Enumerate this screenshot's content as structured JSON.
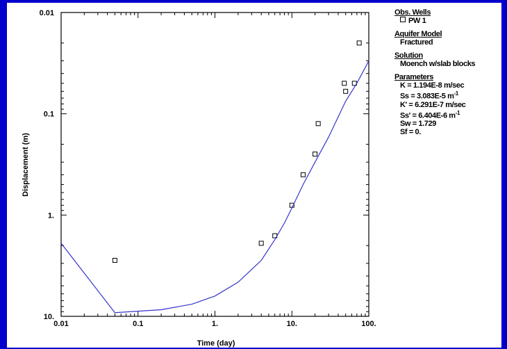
{
  "chart_data": {
    "type": "scatter",
    "xscale": "log",
    "yscale": "log",
    "y_inverted": true,
    "xlabel": "Time (day)",
    "ylabel": "Displacement (m)",
    "xlim": [
      0.01,
      100
    ],
    "ylim": [
      0.01,
      10
    ],
    "x_ticks": [
      "0.01",
      "0.1",
      "1.",
      "10.",
      "100."
    ],
    "y_ticks": [
      "0.01",
      "0.1",
      "1.",
      "10."
    ],
    "grid": false,
    "legend_position": "right",
    "series": [
      {
        "name": "PW 1",
        "kind": "points",
        "marker": "open-square",
        "color": "#000000",
        "x": [
          0.05,
          4.0,
          6.0,
          10.0,
          14.0,
          20.0,
          22.0,
          48.0,
          50.0,
          65.0,
          75.0
        ],
        "y": [
          2.8,
          1.9,
          1.6,
          0.8,
          0.4,
          0.25,
          0.125,
          0.05,
          0.06,
          0.05,
          0.02
        ]
      },
      {
        "kind": "curve",
        "color": "#3333cc",
        "x": [
          0.01,
          0.05,
          0.2,
          0.5,
          1.0,
          2.0,
          4.0,
          6.0,
          8.0,
          10.0,
          14.0,
          20.0,
          30.0,
          50.0,
          70.0,
          100.0
        ],
        "y": [
          1.9,
          9.2,
          8.6,
          7.6,
          6.3,
          4.6,
          2.8,
          1.75,
          1.2,
          0.85,
          0.5,
          0.3,
          0.17,
          0.075,
          0.05,
          0.03
        ]
      }
    ]
  },
  "legend": {
    "obs_header": "Obs. Wells",
    "obs_item": "PW 1",
    "model_header": "Aquifer Model",
    "model_value": "Fractured",
    "solution_header": "Solution",
    "solution_value": "Moench w/slab blocks",
    "params_header": "Parameters",
    "params": [
      {
        "name": "K",
        "text": "= 1.194E-8 m/sec",
        "sup": ""
      },
      {
        "name": "Ss",
        "text": "= 3.083E-5 m",
        "sup": "-1"
      },
      {
        "name": "K'",
        "text": "= 6.291E-7 m/sec",
        "sup": ""
      },
      {
        "name": "Ss'",
        "text": "= 6.404E-6 m",
        "sup": "-1"
      },
      {
        "name": "Sw",
        "text": "= 1.729",
        "sup": ""
      },
      {
        "name": "Sf",
        "text": "= 0.",
        "sup": ""
      }
    ]
  }
}
